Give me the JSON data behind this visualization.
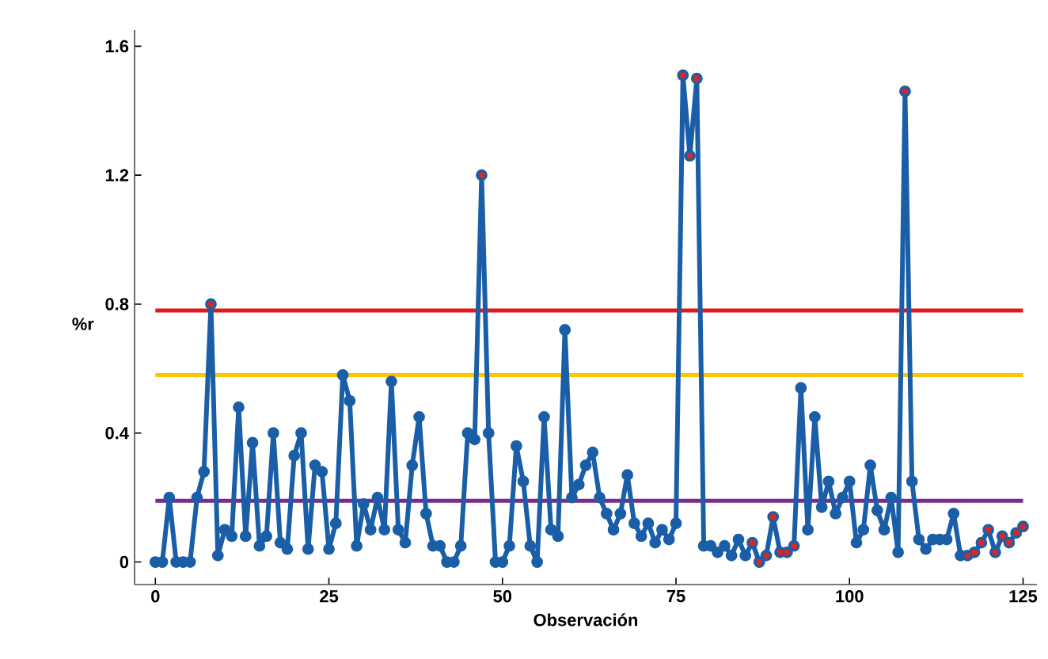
{
  "chart_data": {
    "type": "line",
    "xlabel": "Observación",
    "ylabel": "%r",
    "xlim": [
      -3,
      127
    ],
    "ylim": [
      -0.07,
      1.65
    ],
    "xticks": [
      0,
      25,
      50,
      75,
      100,
      125
    ],
    "yticks": [
      0,
      0.4,
      0.8,
      1.2,
      1.6
    ],
    "marker": "circle",
    "line_style": "solid",
    "series": [
      {
        "color": "#1a5ea8",
        "x": [
          0,
          1,
          2,
          3,
          4,
          5,
          6,
          7,
          8,
          9,
          10,
          11,
          12,
          13,
          14,
          15,
          16,
          17,
          18,
          19,
          20,
          21,
          22,
          23,
          24,
          25,
          26,
          27,
          28,
          29,
          30,
          31,
          32,
          33,
          34,
          35,
          36,
          37,
          38,
          39,
          40,
          41,
          42,
          43,
          44,
          45,
          46,
          47,
          48,
          49,
          50,
          51,
          52,
          53,
          54,
          55,
          56,
          57,
          58,
          59,
          60,
          61,
          62,
          63,
          64,
          65,
          66,
          67,
          68,
          69,
          70,
          71,
          72,
          73,
          74,
          75,
          76,
          77,
          78,
          79,
          80,
          81,
          82,
          83,
          84,
          85,
          86,
          87,
          88,
          89,
          90,
          91,
          92,
          93,
          94,
          95,
          96,
          97,
          98,
          99,
          100,
          101,
          102,
          103,
          104,
          105,
          106,
          107,
          108,
          109,
          110,
          111,
          112,
          113,
          114,
          115,
          116,
          117,
          118,
          119,
          120,
          121,
          122,
          123,
          124,
          125
        ],
        "values": [
          0.0,
          0.0,
          0.2,
          0.0,
          0.0,
          0.0,
          0.2,
          0.28,
          0.8,
          0.02,
          0.1,
          0.08,
          0.48,
          0.08,
          0.37,
          0.05,
          0.08,
          0.4,
          0.06,
          0.04,
          0.33,
          0.4,
          0.04,
          0.3,
          0.28,
          0.04,
          0.12,
          0.58,
          0.5,
          0.05,
          0.18,
          0.1,
          0.2,
          0.1,
          0.56,
          0.1,
          0.06,
          0.3,
          0.45,
          0.15,
          0.05,
          0.05,
          0.0,
          0.0,
          0.05,
          0.4,
          0.38,
          1.2,
          0.4,
          0.0,
          0.0,
          0.05,
          0.36,
          0.25,
          0.05,
          0.0,
          0.45,
          0.1,
          0.08,
          0.72,
          0.2,
          0.24,
          0.3,
          0.34,
          0.2,
          0.15,
          0.1,
          0.15,
          0.27,
          0.12,
          0.08,
          0.12,
          0.06,
          0.1,
          0.07,
          0.12,
          1.51,
          1.26,
          1.5,
          0.05,
          0.05,
          0.03,
          0.05,
          0.02,
          0.07,
          0.02,
          0.06,
          0.0,
          0.02,
          0.14,
          0.03,
          0.03,
          0.05,
          0.54,
          0.1,
          0.45,
          0.17,
          0.25,
          0.15,
          0.2,
          0.25,
          0.06,
          0.1,
          0.3,
          0.16,
          0.1,
          0.2,
          0.03,
          1.46,
          0.25,
          0.07,
          0.04,
          0.07,
          0.07,
          0.07,
          0.15,
          0.02,
          0.02,
          0.03,
          0.06,
          0.1,
          0.03,
          0.08,
          0.06,
          0.09,
          0.11
        ]
      },
      {
        "type": "scatter",
        "marker": "square",
        "color": "#d62828",
        "x": [
          8,
          47,
          76,
          77,
          78,
          86,
          87,
          88,
          89,
          90,
          91,
          92,
          108,
          117,
          118,
          119,
          120,
          121,
          122,
          123,
          124,
          125
        ],
        "values": [
          0.8,
          1.2,
          1.51,
          1.26,
          1.5,
          0.06,
          0.0,
          0.02,
          0.14,
          0.03,
          0.03,
          0.05,
          1.46,
          0.02,
          0.03,
          0.06,
          0.1,
          0.03,
          0.08,
          0.06,
          0.09,
          0.11
        ]
      }
    ],
    "ref_lines": [
      {
        "axis": "y",
        "value": 0.78,
        "color": "#e0191b"
      },
      {
        "axis": "y",
        "value": 0.58,
        "color": "#fdc500"
      },
      {
        "axis": "y",
        "value": 0.19,
        "color": "#7b2a8f"
      }
    ]
  }
}
